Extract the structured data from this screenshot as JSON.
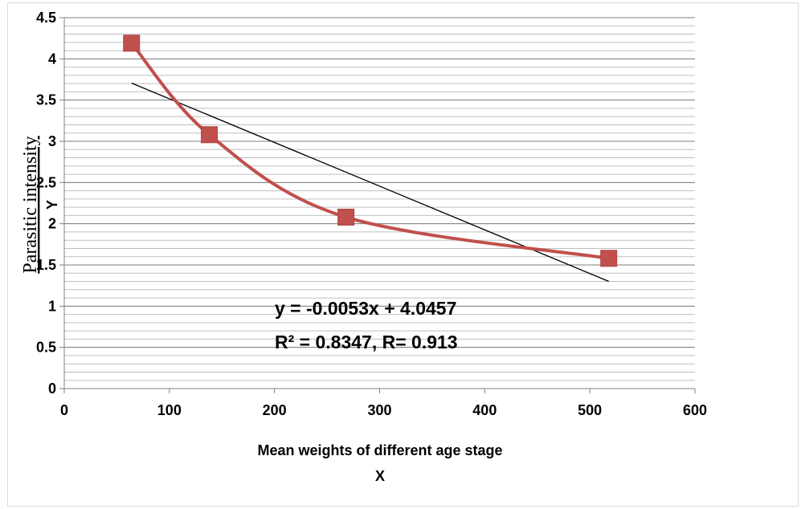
{
  "chart_data": {
    "type": "scatter",
    "x_title": "Mean weights of different age stage",
    "x_sublabel": "X",
    "y_title": "Parasitic intensity",
    "y_sublabel": "Y",
    "xlim": [
      0,
      600
    ],
    "ylim": [
      0,
      4.5
    ],
    "x_ticks": [
      "0",
      "100",
      "200",
      "300",
      "400",
      "500",
      "600"
    ],
    "y_ticks": [
      "0",
      "0.5",
      "1",
      "1.5",
      "2",
      "2.5",
      "3",
      "3.5",
      "4",
      "4.5"
    ],
    "series": [
      {
        "x": [
          64,
          138,
          268,
          518
        ],
        "y": [
          4.19,
          3.08,
          2.08,
          1.58
        ],
        "color": "#c0504d",
        "marker": "square",
        "smoothed": true
      }
    ],
    "trendline": {
      "type": "linear",
      "slope": -0.0053,
      "intercept": 4.0457,
      "x_range": [
        64,
        518
      ],
      "color": "#000000"
    },
    "annotations": {
      "equation": "y = -0.0053x + 4.0457",
      "r_squared": "R² = 0.8347, R= 0.913"
    },
    "gridlines": "horizontal major and minor"
  }
}
